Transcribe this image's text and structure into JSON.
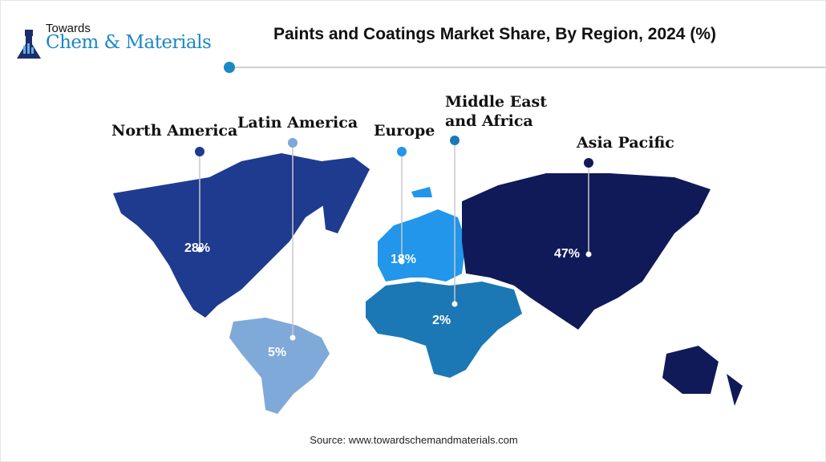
{
  "logo": {
    "line1": "Towards",
    "line2": "Chem & Materials"
  },
  "title": "Paints and Coatings Market Share, By Region, 2024 (%)",
  "source": "Source: www.towardschemandmaterials.com",
  "colors": {
    "accent": "#1b87c5",
    "north_america": "#1f3b8f",
    "latin_america": "#7fa9d8",
    "europe": "#2196ea",
    "middle_east_africa": "#1b78b5",
    "asia_pacific": "#101a58"
  },
  "chart_data": {
    "type": "map",
    "title": "Paints and Coatings Market Share, By Region, 2024 (%)",
    "regions": [
      {
        "name": "North America",
        "value": 28,
        "label": "28%"
      },
      {
        "name": "Latin America",
        "value": 5,
        "label": "5%"
      },
      {
        "name": "Europe",
        "value": 18,
        "label": "18%"
      },
      {
        "name": "Middle East and Africa",
        "value": 2,
        "label": "2%"
      },
      {
        "name": "Asia Pacific",
        "value": 47,
        "label": "47%"
      }
    ]
  }
}
